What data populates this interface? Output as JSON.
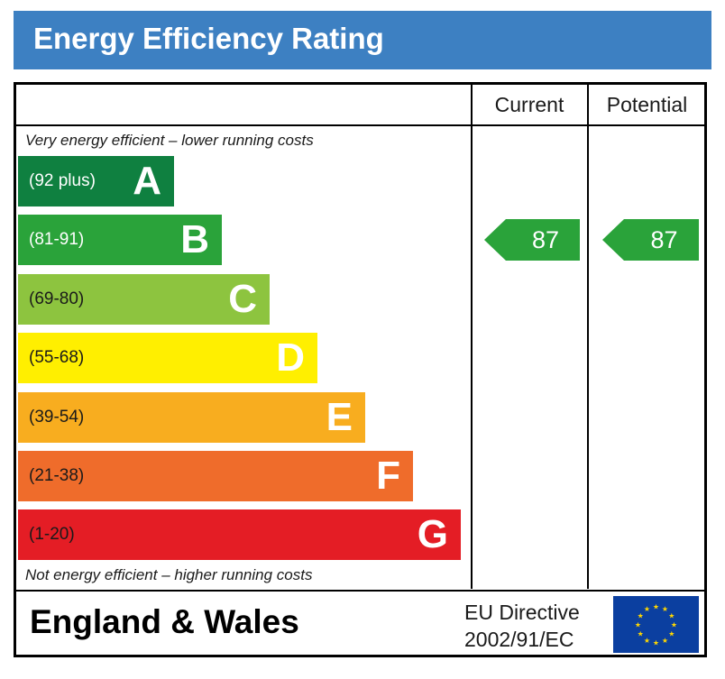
{
  "header": {
    "title": "Energy Efficiency Rating"
  },
  "columns": {
    "current": "Current",
    "potential": "Potential"
  },
  "notes": {
    "top": "Very energy efficient – lower running costs",
    "bottom": "Not energy efficient – higher running costs"
  },
  "chart_data": {
    "type": "bar",
    "title": "Energy Efficiency Rating",
    "bands": [
      {
        "letter": "A",
        "range": "(92 plus)",
        "color": "#0f8040",
        "range_color": "#ffffff"
      },
      {
        "letter": "B",
        "range": "(81-91)",
        "color": "#2aa33a",
        "range_color": "#ffffff"
      },
      {
        "letter": "C",
        "range": "(69-80)",
        "color": "#8dc43f",
        "range_color": "#1a1a1a"
      },
      {
        "letter": "D",
        "range": "(55-68)",
        "color": "#ffef00",
        "range_color": "#1a1a1a"
      },
      {
        "letter": "E",
        "range": "(39-54)",
        "color": "#f8ad1f",
        "range_color": "#1a1a1a"
      },
      {
        "letter": "F",
        "range": "(21-38)",
        "color": "#ef6c2b",
        "range_color": "#1a1a1a"
      },
      {
        "letter": "G",
        "range": "(1-20)",
        "color": "#e41d25",
        "range_color": "#1a1a1a"
      }
    ],
    "ratings": {
      "current": {
        "value": 87,
        "band": "B",
        "color": "#2aa33a"
      },
      "potential": {
        "value": 87,
        "band": "B",
        "color": "#2aa33a"
      }
    }
  },
  "footer": {
    "region": "England & Wales",
    "directive_line1": "EU Directive",
    "directive_line2": "2002/91/EC",
    "flag_icon": "eu-flag-icon",
    "flag_color": "#0b3fa0",
    "star_color": "#ffd700"
  }
}
